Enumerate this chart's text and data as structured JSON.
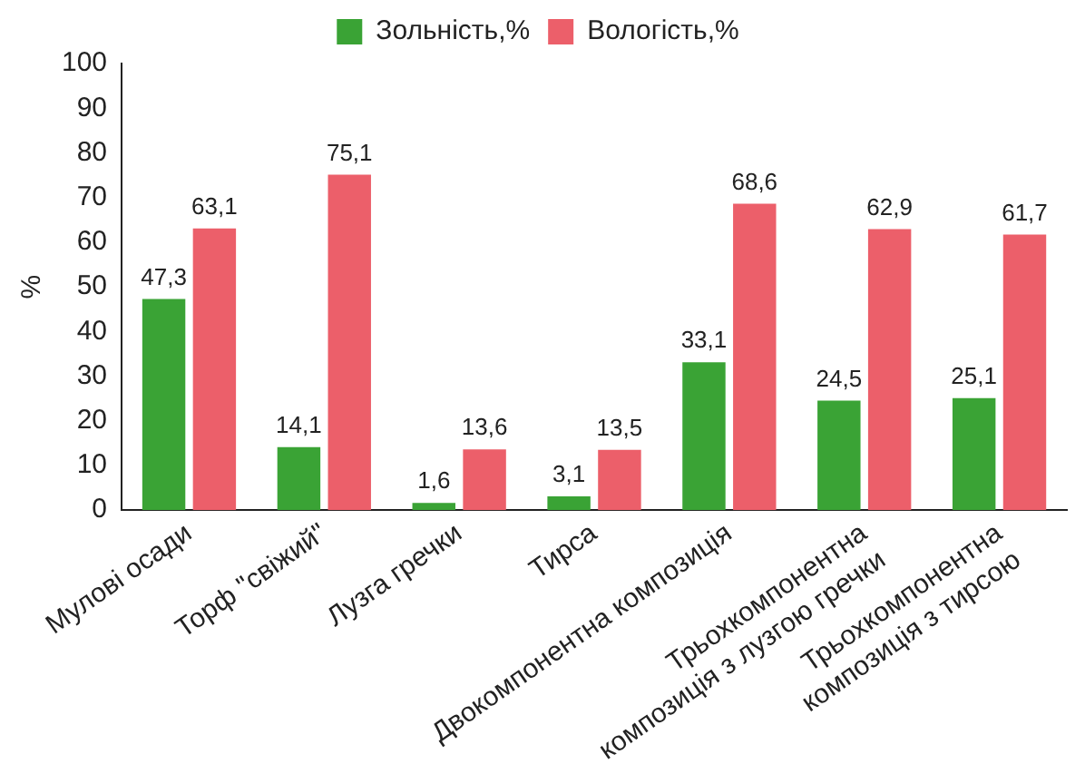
{
  "chart_data": {
    "type": "bar",
    "ylabel": "%",
    "categories": [
      "Мулові осади",
      "Торф \"свіжий\"",
      "Лузга гречки",
      "Тирса",
      "Двокомпонентна композиція",
      "Трьохкомпонентна композиція з лузгою гречки",
      "Трьохкомпонентна композиція з тирсою"
    ],
    "series": [
      {
        "name": "Зольність,%",
        "color": "#3aa335",
        "values": [
          47.3,
          14.1,
          1.6,
          3.1,
          33.1,
          24.5,
          25.1
        ],
        "value_labels": [
          "47,3",
          "14,1",
          "1,6",
          "3,1",
          "33,1",
          "24,5",
          "25,1"
        ]
      },
      {
        "name": "Вологість,%",
        "color": "#ec5f6a",
        "values": [
          63.1,
          75.1,
          13.6,
          13.5,
          68.6,
          62.9,
          61.7
        ],
        "value_labels": [
          "63,1",
          "75,1",
          "13,6",
          "13,5",
          "68,6",
          "62,9",
          "61,7"
        ]
      }
    ],
    "ylim": [
      0,
      100
    ],
    "yticks": [
      0,
      10,
      20,
      30,
      40,
      50,
      60,
      70,
      80,
      90,
      100
    ],
    "grid": false,
    "legend": "top"
  }
}
